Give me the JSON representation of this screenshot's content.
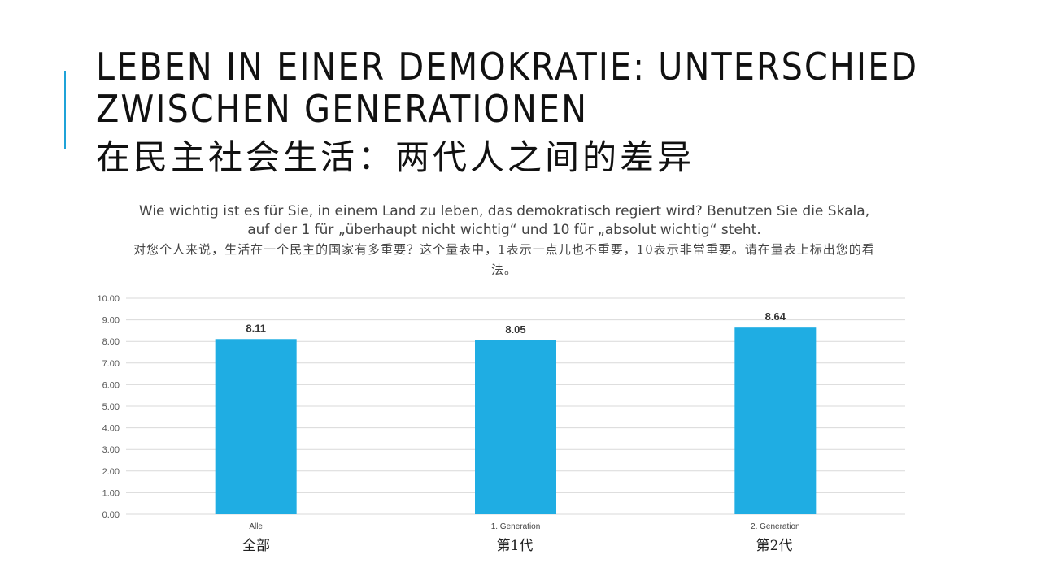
{
  "slide": {
    "title_de": "LEBEN IN EINER DEMOKRATIE: UNTERSCHIED ZWISCHEN GENERATIONEN",
    "title_cn": "在民主社会生活：两代人之间的差异",
    "accent_color": "#1fa3d8"
  },
  "question": {
    "de": "Wie wichtig ist es für Sie, in einem Land zu leben, das demokratisch regiert wird? Benutzen Sie die Skala, auf der 1 für „überhaupt nicht wichtig“ und 10 für „absolut wichtig“ steht.",
    "cn": "对您个人来说，生活在一个民主的国家有多重要？这个量表中，1表示一点儿也不重要，10表示非常重要。请在量表上标出您的看法。"
  },
  "chart_data": {
    "type": "bar",
    "categories": [
      "Alle",
      "1. Generation",
      "2. Generation"
    ],
    "categories_cn": [
      "全部",
      "第1代",
      "第2代"
    ],
    "values": [
      8.11,
      8.05,
      8.64
    ],
    "value_labels": [
      "8.11",
      "8.05",
      "8.64"
    ],
    "ylim": [
      0,
      10
    ],
    "yticks": [
      "0.00",
      "1.00",
      "2.00",
      "3.00",
      "4.00",
      "5.00",
      "6.00",
      "7.00",
      "8.00",
      "9.00",
      "10.00"
    ],
    "grid": true,
    "bar_color": "#1fade3"
  }
}
